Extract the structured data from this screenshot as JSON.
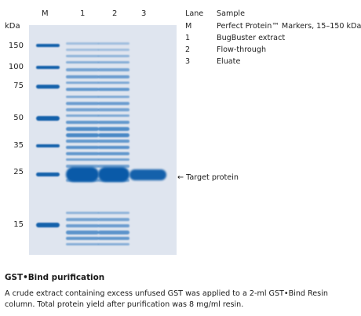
{
  "lane_headers": [
    "M",
    "1",
    "2",
    "3"
  ],
  "kda_label": "kDa",
  "mw_markers": [
    "150",
    "100",
    "75",
    "50",
    "35",
    "25",
    "15"
  ],
  "legend": {
    "lane_header": "Lane",
    "sample_header": "Sample",
    "rows": [
      {
        "lane": "M",
        "sample": "Perfect Protein™ Markers,  15–150 kDa"
      },
      {
        "lane": "1",
        "sample": "BugBuster extract"
      },
      {
        "lane": "2",
        "sample": "Flow-through"
      },
      {
        "lane": "3",
        "sample": "Eluate"
      }
    ]
  },
  "target_label": "← Target protein",
  "caption": {
    "title": "GST•Bind purification",
    "text": "A crude extract containing excess unfused GST was applied to a 2-ml GST•Bind Resin column. Total protein yield after purification was 8 mg/ml resin."
  },
  "colors": {
    "gel_background": "#dfe5ef",
    "band_strong": "#0a5aa8",
    "band_medium": "#2f78bf",
    "band_light": "#7ea9d8"
  }
}
